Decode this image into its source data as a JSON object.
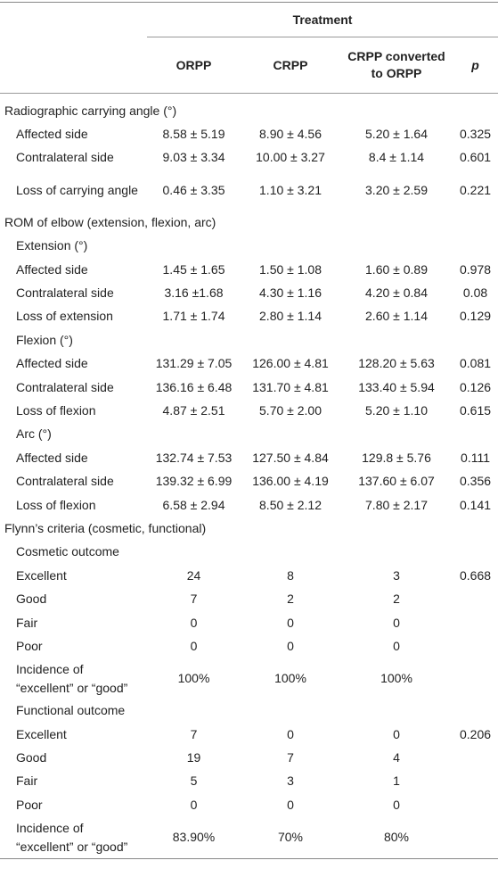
{
  "header": {
    "group": "Treatment",
    "columns": [
      "ORPP",
      "CRPP",
      "CRPP converted to ORPP",
      "p"
    ]
  },
  "sections": [
    {
      "title": "Radiographic carrying angle (°)",
      "rows": [
        {
          "label": "Affected side",
          "values": [
            "8.58 ± 5.19",
            "8.90 ± 4.56",
            "5.20 ± 1.64"
          ],
          "p": 0.325
        },
        {
          "label": "Contralateral side",
          "values": [
            "9.03 ± 3.34",
            "10.00 ± 3.27",
            "8.4 ± 1.14"
          ],
          "p": 0.601
        },
        {
          "label": "Loss of carrying angle",
          "values": [
            "0.46 ± 3.35",
            "1.10 ± 3.21",
            "3.20 ± 2.59"
          ],
          "p": 0.221
        }
      ]
    },
    {
      "title": "ROM of elbow (extension, flexion, arc)",
      "groups": [
        {
          "title": "Extension (°)",
          "rows": [
            {
              "label": "Affected side",
              "values": [
                "1.45 ± 1.65",
                "1.50 ± 1.08",
                "1.60 ± 0.89"
              ],
              "p": 0.978
            },
            {
              "label": "Contralateral side",
              "values": [
                "3.16 ±1.68",
                "4.30 ± 1.16",
                "4.20 ± 0.84"
              ],
              "p": 0.08
            },
            {
              "label": "Loss of extension",
              "values": [
                "1.71 ± 1.74",
                "2.80 ± 1.14",
                "2.60 ± 1.14"
              ],
              "p": 0.129
            }
          ]
        },
        {
          "title": "Flexion (°)",
          "rows": [
            {
              "label": "Affected side",
              "values": [
                "131.29 ± 7.05",
                "126.00 ± 4.81",
                "128.20 ± 5.63"
              ],
              "p": 0.081
            },
            {
              "label": "Contralateral side",
              "values": [
                "136.16 ± 6.48",
                "131.70 ± 4.81",
                "133.40 ± 5.94"
              ],
              "p": 0.126
            },
            {
              "label": "Loss of flexion",
              "values": [
                "4.87 ± 2.51",
                "5.70 ± 2.00",
                "5.20 ± 1.10"
              ],
              "p": 0.615
            }
          ]
        },
        {
          "title": "Arc (°)",
          "rows": [
            {
              "label": "Affected side",
              "values": [
                "132.74 ± 7.53",
                "127.50 ± 4.84",
                "129.8 ± 5.76"
              ],
              "p": 0.111
            },
            {
              "label": "Contralateral side",
              "values": [
                "139.32 ± 6.99",
                "136.00 ± 4.19",
                "137.60 ± 6.07"
              ],
              "p": 0.356
            },
            {
              "label": "Loss of flexion",
              "values": [
                "6.58 ± 2.94",
                "8.50 ± 2.12",
                "7.80 ± 2.17"
              ],
              "p": 0.141
            }
          ]
        }
      ]
    },
    {
      "title": "Flynn’s criteria (cosmetic, functional)",
      "groups": [
        {
          "title": "Cosmetic outcome",
          "rows": [
            {
              "label": "Excellent",
              "values": [
                24,
                8,
                3
              ],
              "p": 0.668
            },
            {
              "label": "Good",
              "values": [
                7,
                2,
                2
              ]
            },
            {
              "label": "Fair",
              "values": [
                0,
                0,
                0
              ]
            },
            {
              "label": "Poor",
              "values": [
                0,
                0,
                0
              ]
            },
            {
              "label": "Incidence of “excellent” or “good”",
              "values": [
                "100%",
                "100%",
                "100%"
              ]
            }
          ]
        },
        {
          "title": "Functional outcome",
          "rows": [
            {
              "label": "Excellent",
              "values": [
                7,
                0,
                0
              ],
              "p": 0.206
            },
            {
              "label": "Good",
              "values": [
                19,
                7,
                4
              ]
            },
            {
              "label": "Fair",
              "values": [
                5,
                3,
                1
              ]
            },
            {
              "label": "Poor",
              "values": [
                0,
                0,
                0
              ]
            },
            {
              "label": "Incidence of “excellent” or “good”",
              "values": [
                "83.90%",
                "70%",
                "80%"
              ]
            }
          ]
        }
      ]
    }
  ]
}
